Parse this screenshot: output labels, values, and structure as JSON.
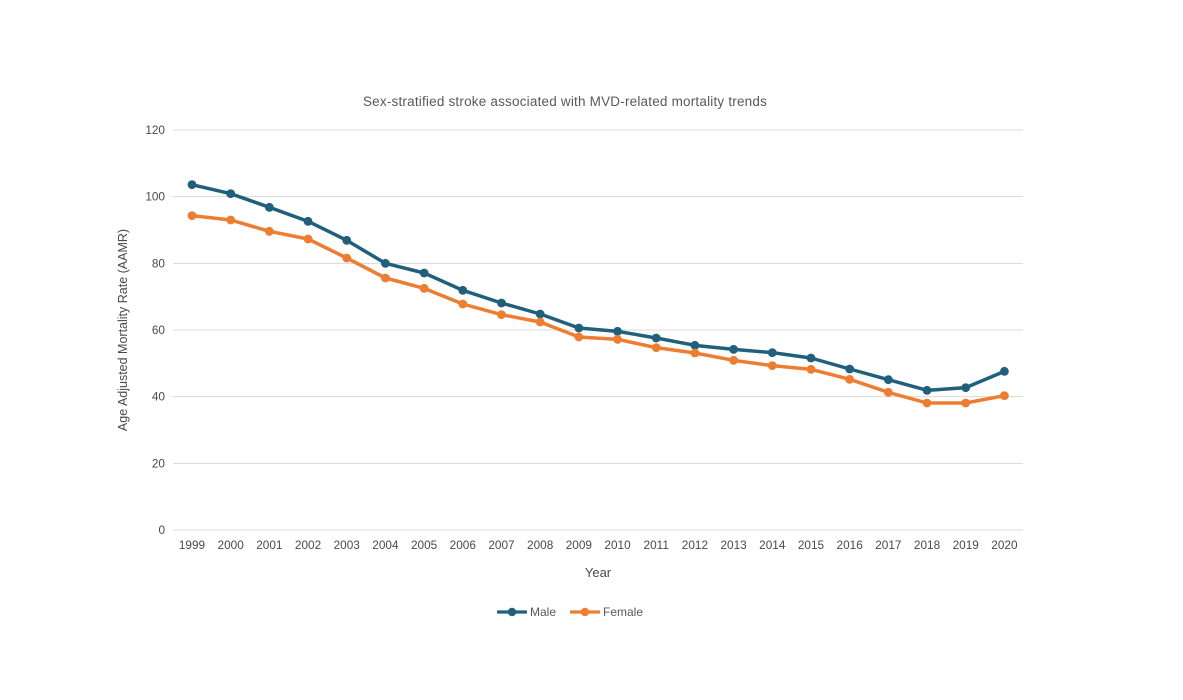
{
  "chart_data": {
    "type": "line",
    "title": "Sex-stratified stroke associated with MVD-related mortality trends",
    "xlabel": "Year",
    "ylabel": "Age Adjusted Mortality Rate (AAMR)",
    "categories": [
      "1999",
      "2000",
      "2001",
      "2002",
      "2003",
      "2004",
      "2005",
      "2006",
      "2007",
      "2008",
      "2009",
      "2010",
      "2011",
      "2012",
      "2013",
      "2014",
      "2015",
      "2016",
      "2017",
      "2018",
      "2019",
      "2020"
    ],
    "series": [
      {
        "name": "Male",
        "color": "#20607C",
        "values": [
          103.6,
          100.9,
          96.8,
          92.6,
          86.9,
          80.0,
          77.1,
          71.9,
          68.1,
          64.8,
          60.6,
          59.6,
          57.6,
          55.4,
          54.2,
          53.2,
          51.6,
          48.3,
          45.1,
          41.9,
          42.7,
          47.6
        ]
      },
      {
        "name": "Female",
        "color": "#ED7D31",
        "values": [
          94.3,
          93.0,
          89.6,
          87.3,
          81.6,
          75.6,
          72.5,
          67.8,
          64.6,
          62.4,
          57.9,
          57.2,
          54.7,
          53.1,
          50.9,
          49.3,
          48.2,
          45.2,
          41.3,
          38.1,
          38.1,
          40.3
        ]
      }
    ],
    "ylim": [
      0,
      120
    ],
    "yticks": [
      0,
      20,
      40,
      60,
      80,
      100,
      120
    ],
    "grid": "horizontal",
    "gridline_color": "#D9D9D9",
    "tick_text_color": "#4a4a4a",
    "legend_position": "bottom"
  }
}
